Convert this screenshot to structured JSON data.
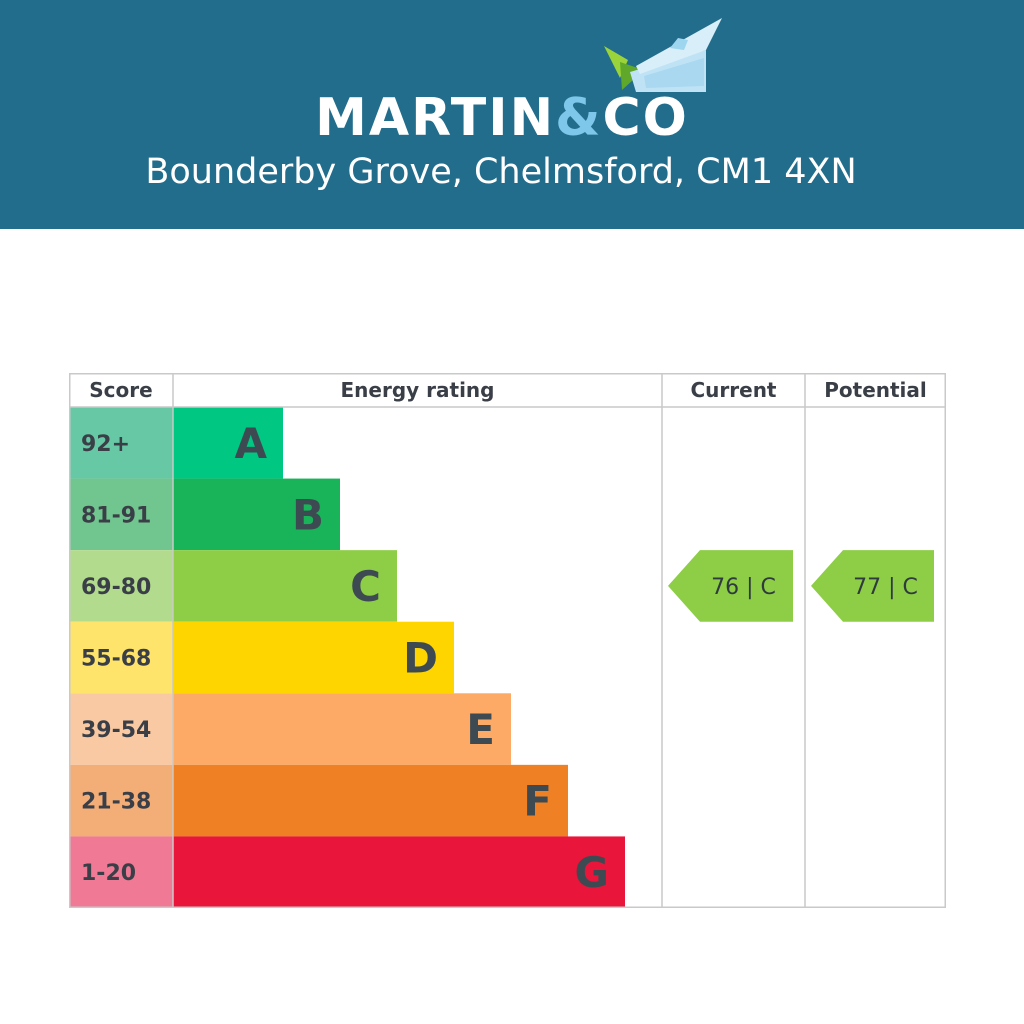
{
  "header": {
    "brand_main": "MARTIN",
    "brand_amp": "&",
    "brand_end": "CO",
    "address": "Bounderby Grove, Chelmsford, CM1 4XN",
    "logo_icon": "house-roof-logo-icon",
    "background_color": "#226d8c",
    "amp_color": "#7ec6ea"
  },
  "chart_data": {
    "type": "bar",
    "columns": [
      "Score",
      "Energy rating",
      "Current",
      "Potential"
    ],
    "categories": [
      "A",
      "B",
      "C",
      "D",
      "E",
      "F",
      "G"
    ],
    "score_ranges": [
      "92+",
      "81-91",
      "69-80",
      "55-68",
      "39-54",
      "21-38",
      "1-20"
    ],
    "bar_colors": [
      "#00c781",
      "#19b459",
      "#8dce46",
      "#ffd500",
      "#fcaa65",
      "#ef8023",
      "#e9153b"
    ],
    "score_colors": [
      "#66c8a5",
      "#71c58f",
      "#b3db8e",
      "#ffe46b",
      "#f9c9a3",
      "#f3ad77",
      "#f07a95"
    ],
    "current": {
      "value": 76,
      "band": "C",
      "label": "76 | C"
    },
    "potential": {
      "value": 77,
      "band": "C",
      "label": "77 | C"
    },
    "indicator_color": "#8dce46"
  }
}
